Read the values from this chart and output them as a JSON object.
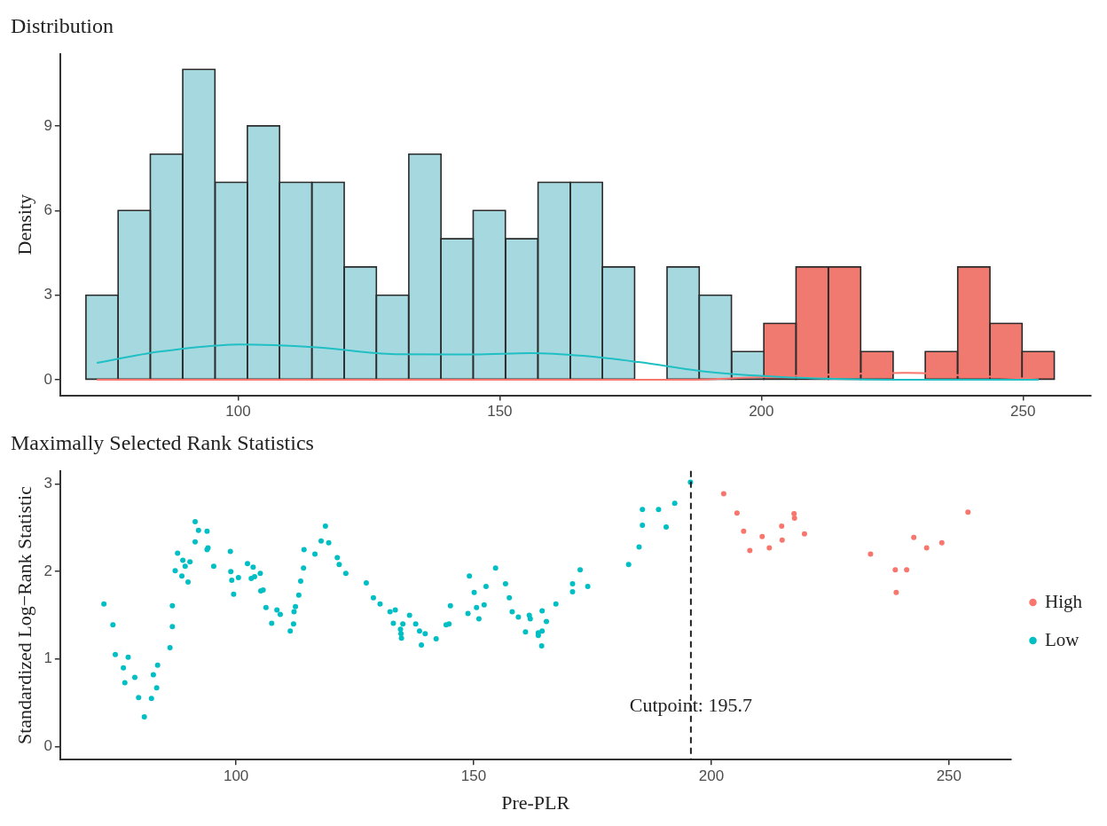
{
  "chart_data": [
    {
      "type": "histogram",
      "title": "Distribution",
      "ylabel": "Density",
      "bins": [
        70.9,
        77.1,
        83.2,
        89.4,
        95.6,
        101.8,
        107.9,
        114.1,
        120.3,
        126.4,
        132.6,
        138.8,
        144.9,
        151.1,
        157.3,
        163.5,
        169.6,
        175.8,
        182.0,
        188.1,
        194.3,
        200.5,
        206.6,
        212.8,
        219.0,
        225.2,
        231.3,
        237.5,
        243.7,
        249.8,
        256.0
      ],
      "series": [
        {
          "color": "#a5d9df",
          "values": [
            3,
            6,
            8,
            11,
            7,
            9,
            7,
            7,
            4,
            3,
            8,
            5,
            6,
            5,
            7,
            7,
            4,
            0,
            4,
            3,
            1,
            null,
            null,
            null,
            null,
            null,
            null,
            null,
            null,
            null
          ]
        },
        {
          "color": "#f07a70",
          "values": [
            null,
            null,
            null,
            null,
            null,
            null,
            null,
            null,
            null,
            null,
            null,
            null,
            null,
            null,
            null,
            null,
            null,
            null,
            null,
            null,
            null,
            2,
            4,
            4,
            1,
            0,
            1,
            4,
            2,
            1
          ]
        },
        {
          "type": "line",
          "color": "#1fbfc4",
          "x": [
            73,
            85,
            100,
            115,
            130,
            145,
            156,
            166,
            176.5,
            190,
            204,
            218,
            235,
            253
          ],
          "values": [
            0.6,
            1.0,
            1.25,
            1.15,
            0.91,
            0.9,
            0.95,
            0.85,
            0.63,
            0.28,
            0.1,
            0.02,
            0,
            0
          ]
        },
        {
          "type": "line",
          "color": "#f8766d",
          "x": [
            73,
            185,
            200,
            215,
            228,
            240,
            253
          ],
          "values": [
            0,
            0,
            0.1,
            0.2,
            0.25,
            0.15,
            0.02
          ]
        }
      ],
      "xlim": [
        66,
        263
      ],
      "ylim": [
        -0.55,
        11.55
      ],
      "xticks": [
        100,
        150,
        200,
        250
      ],
      "yticks": [
        0,
        3,
        6,
        9
      ],
      "legend": false
    },
    {
      "type": "scatter",
      "title": "Maximally Selected Rank Statistics",
      "xlabel": "Pre-PLR",
      "ylabel": "Standardized Log−Rank Statistic",
      "series": [
        {
          "name": "High",
          "color": "#f8766d",
          "x": [
            202.6,
            205.4,
            206.8,
            208.1,
            210.7,
            212.2,
            214.8,
            214.9,
            217.4,
            217.5,
            219.6,
            233.5,
            238.7,
            238.9,
            241.1,
            242.6,
            245.3,
            248.5,
            254.0
          ],
          "values": [
            2.89,
            2.67,
            2.46,
            2.24,
            2.4,
            2.27,
            2.52,
            2.36,
            2.66,
            2.61,
            2.43,
            2.2,
            2.02,
            1.76,
            2.02,
            2.39,
            2.27,
            2.33,
            2.68
          ]
        },
        {
          "name": "Low",
          "color": "#00bfc4",
          "x": [
            72.2,
            74.1,
            74.6,
            76.3,
            76.6,
            77.3,
            78.7,
            79.5,
            80.7,
            82.2,
            82.6,
            83.3,
            83.5,
            86.1,
            86.6,
            86.6,
            87.2,
            87.7,
            88.6,
            88.8,
            89.3,
            89.9,
            90.3,
            91.4,
            91.4,
            92.1,
            93.9,
            93.9,
            94.1,
            95.3,
            98.8,
            98.9,
            99.1,
            99.5,
            100.5,
            102.4,
            103.2,
            103.6,
            103.9,
            105.1,
            105.2,
            105.7,
            106.3,
            107.5,
            108.6,
            109.3,
            111.4,
            112.1,
            112.2,
            112.5,
            113.2,
            113.6,
            114.2,
            114.3,
            116.6,
            117.9,
            118.8,
            119.5,
            121.3,
            121.7,
            123.1,
            127.4,
            128.9,
            130.3,
            132.4,
            133.5,
            133.1,
            134.6,
            135.1,
            134.7,
            134.8,
            136.5,
            137.8,
            138.6,
            139.0,
            139.8,
            142.1,
            144.2,
            144.8,
            145.1,
            148.8,
            149.1,
            150.1,
            150.6,
            151.1,
            152.2,
            152.6,
            154.6,
            156.7,
            157.5,
            158.1,
            159.4,
            160.9,
            161.7,
            161.9,
            163.6,
            163.6,
            164.4,
            164.3,
            164.4,
            165.3,
            167.3,
            170.8,
            170.8,
            172.4,
            174.0,
            182.6,
            184.8,
            185.5,
            185.5,
            188.9,
            190.5,
            192.3,
            195.6
          ],
          "values": [
            1.63,
            1.39,
            1.05,
            0.9,
            0.73,
            1.02,
            0.79,
            0.56,
            0.34,
            0.55,
            0.82,
            0.67,
            0.93,
            1.13,
            1.37,
            1.61,
            2.01,
            2.21,
            1.95,
            2.13,
            2.06,
            1.88,
            2.11,
            2.34,
            2.57,
            2.47,
            2.46,
            2.25,
            2.27,
            2.06,
            2.23,
            2.0,
            1.9,
            1.74,
            1.93,
            2.09,
            1.92,
            2.05,
            1.94,
            1.98,
            1.78,
            1.79,
            1.59,
            1.41,
            1.56,
            1.51,
            1.32,
            1.4,
            1.54,
            1.6,
            1.73,
            1.89,
            2.04,
            2.25,
            2.2,
            2.35,
            2.52,
            2.33,
            2.16,
            2.08,
            1.98,
            1.87,
            1.7,
            1.63,
            1.54,
            1.56,
            1.41,
            1.34,
            1.4,
            1.29,
            1.24,
            1.5,
            1.4,
            1.32,
            1.16,
            1.29,
            1.23,
            1.39,
            1.4,
            1.61,
            1.52,
            1.95,
            1.76,
            1.59,
            1.46,
            1.62,
            1.83,
            2.04,
            1.86,
            1.7,
            1.54,
            1.48,
            1.31,
            1.5,
            1.46,
            1.3,
            1.27,
            1.55,
            1.15,
            1.32,
            1.43,
            1.63,
            1.86,
            1.77,
            2.02,
            1.83,
            2.08,
            2.28,
            2.53,
            2.71,
            2.71,
            2.51,
            2.78,
            3.02
          ]
        }
      ],
      "xlim": [
        63,
        263
      ],
      "ylim": [
        -0.15,
        3.15
      ],
      "xticks": [
        100,
        150,
        200,
        250
      ],
      "yticks": [
        0,
        1,
        2,
        3
      ],
      "ref_lines": [
        {
          "axis": "x",
          "value": 195.7,
          "label": "Cutpoint: 195.7",
          "line_style": "dashed"
        }
      ],
      "legend": "right",
      "marker": "circle"
    }
  ]
}
